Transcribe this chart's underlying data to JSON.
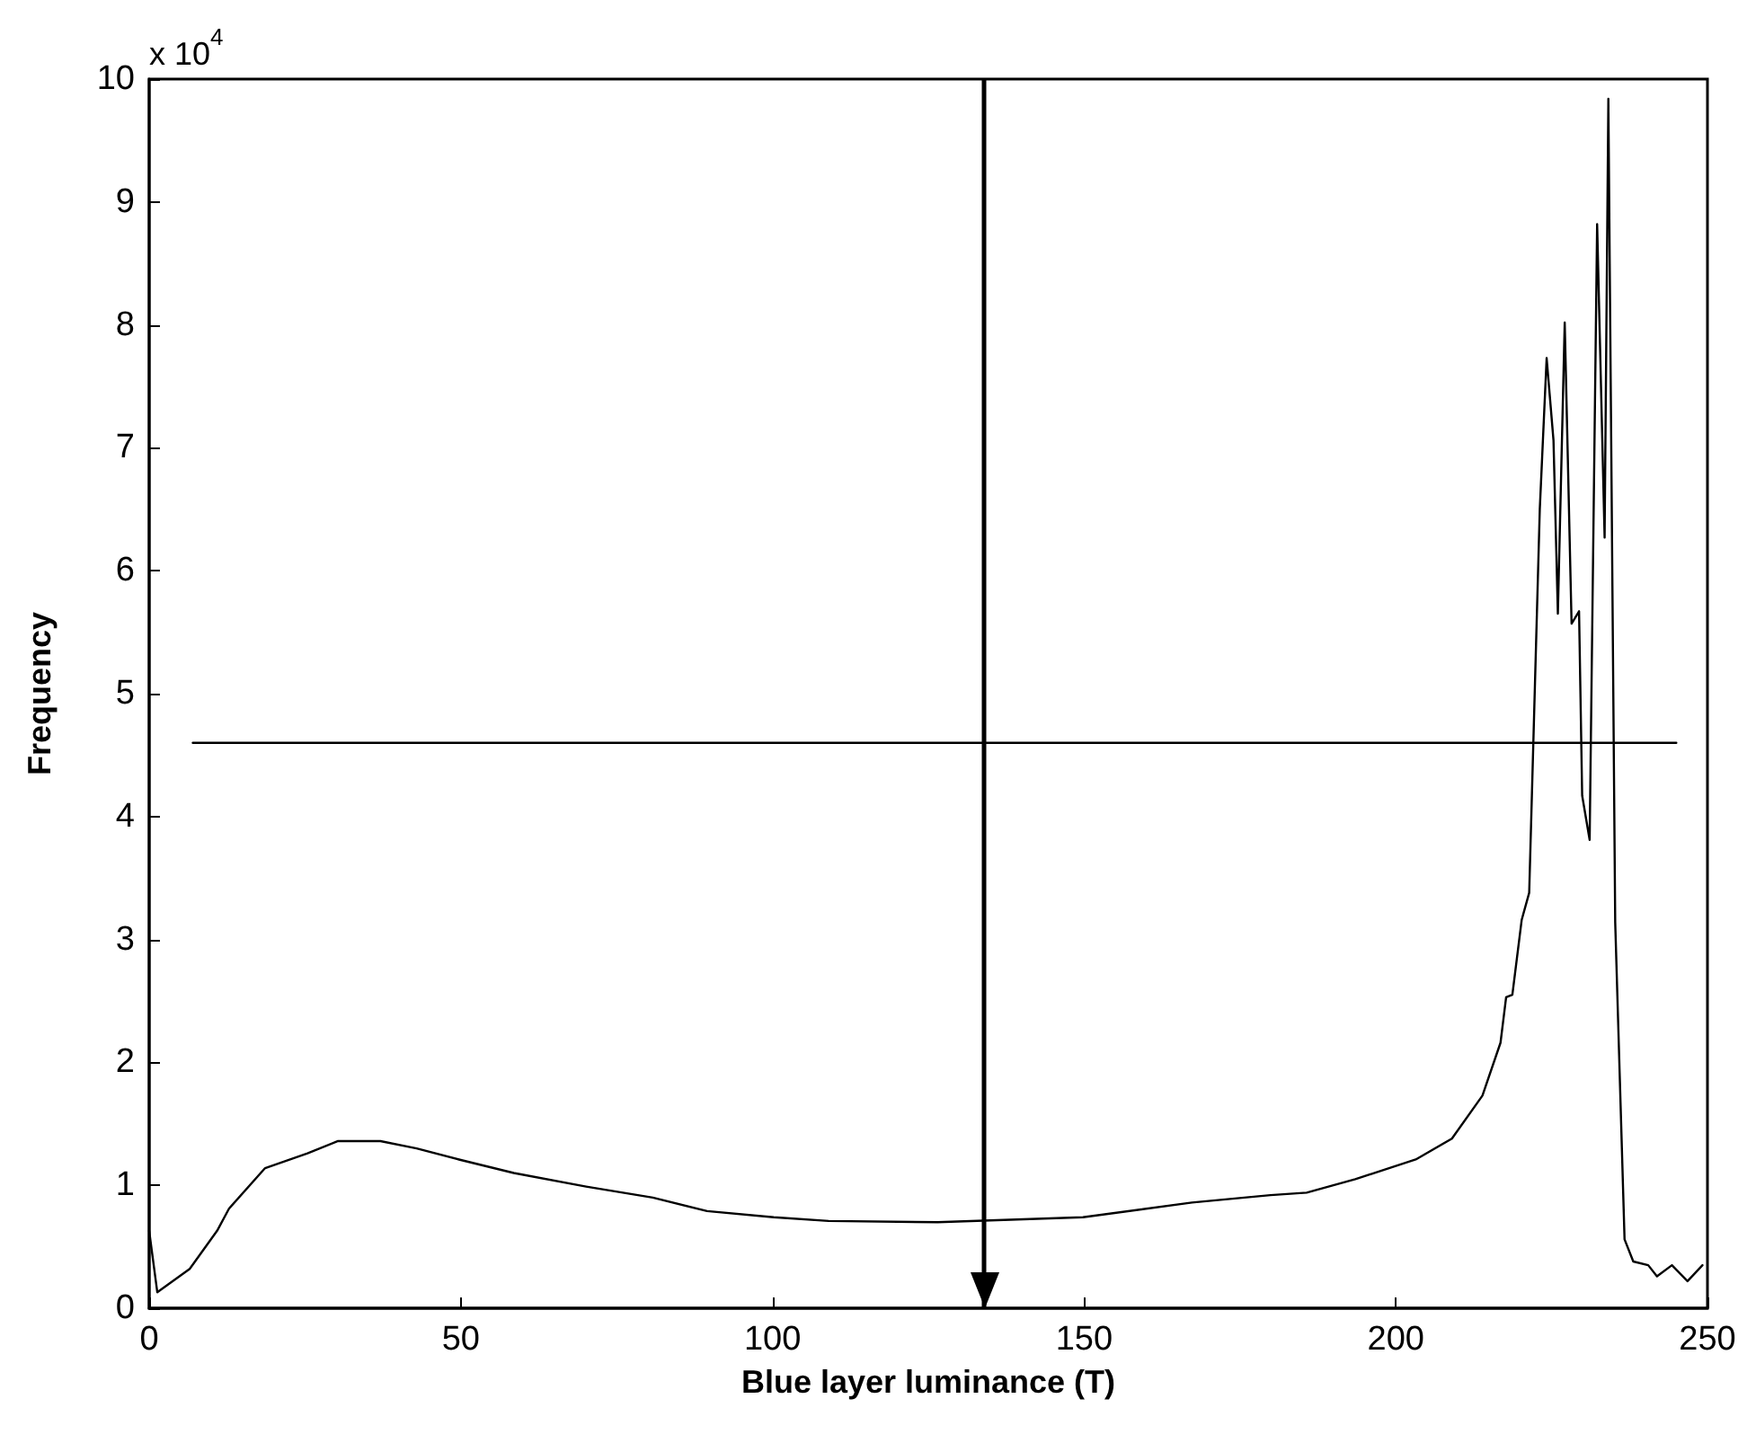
{
  "chart_data": {
    "type": "line",
    "xlabel": "Blue layer luminance (T)",
    "ylabel": "Frequency",
    "annotations": [
      "x 10$^{4}$"
    ],
    "xlim": [
      0,
      250
    ],
    "xticks": [
      0,
      50,
      100,
      150,
      200,
      250
    ],
    "ylim": [
      0,
      10
    ],
    "yticks": [
      0,
      1,
      2,
      3,
      4,
      5,
      6,
      7,
      8,
      9,
      10
    ],
    "grid": false,
    "marker": "none",
    "line_style": "solid",
    "series": [
      {
        "color": "#000000",
        "x": [
          0,
          1.3,
          6.5,
          10.9,
          12.8,
          18.6,
          25.4,
          30.3,
          37.1,
          42.9,
          49.7,
          58.5,
          70.1,
          80.8,
          89.5,
          100.2,
          109,
          126.5,
          149.8,
          167.3,
          179.9,
          185.7,
          193.5,
          203.2,
          209,
          213.9,
          216.8,
          217.7,
          218.7,
          220.2,
          221.4,
          223.1,
          224.2,
          225.3,
          226,
          227.1,
          228.2,
          229.4,
          229.9,
          231.1,
          232.3,
          233.5,
          234.1,
          235.2,
          236.7,
          238.1,
          240.5,
          241.9,
          244.3,
          246.8,
          249.2
        ],
        "values": [
          0.63,
          0.13,
          0.32,
          0.63,
          0.81,
          1.14,
          1.26,
          1.36,
          1.36,
          1.3,
          1.21,
          1.1,
          0.99,
          0.9,
          0.79,
          0.74,
          0.71,
          0.7,
          0.74,
          0.86,
          0.92,
          0.94,
          1.05,
          1.21,
          1.38,
          1.73,
          2.16,
          2.53,
          2.55,
          3.16,
          3.38,
          6.5,
          7.73,
          7.06,
          5.65,
          8.02,
          5.57,
          5.67,
          4.17,
          3.81,
          8.82,
          6.27,
          9.84,
          3.14,
          0.56,
          0.38,
          0.35,
          0.26,
          0.35,
          0.22,
          0.35
        ]
      },
      {
        "color": "#000000",
        "x": [
          7,
          245
        ],
        "values": [
          4.6,
          4.6
        ]
      }
    ],
    "ref_lines": [
      {
        "axis": "x",
        "value": 134,
        "color": "#000000"
      }
    ]
  }
}
